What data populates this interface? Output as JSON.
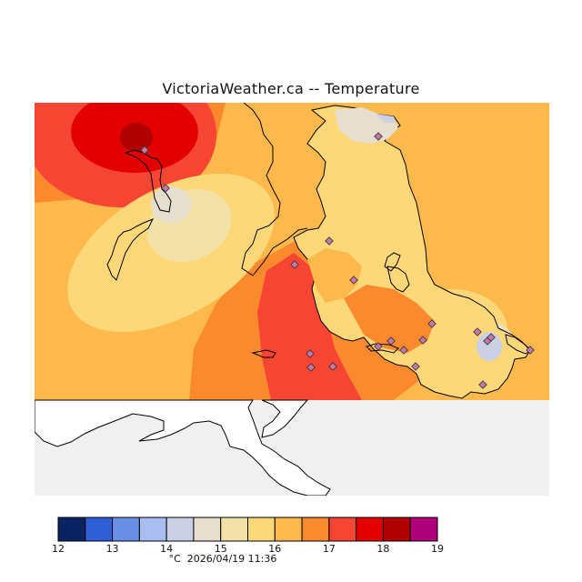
{
  "header": {
    "title": "VictoriaWeather.ca -- Temperature"
  },
  "legend": {
    "unit": "°C",
    "timestamp": "2026/04/19 11:36",
    "ticks": [
      "12",
      "13",
      "14",
      "15",
      "16",
      "17",
      "18",
      "19"
    ],
    "bins": [
      {
        "range": "12-12.5",
        "color": "#0b2363"
      },
      {
        "range": "12.5-13",
        "color": "#2f5fd6"
      },
      {
        "range": "13-13.5",
        "color": "#6a8fe6"
      },
      {
        "range": "13.5-14",
        "color": "#a9bdf0"
      },
      {
        "range": "14-14.5",
        "color": "#cbd0e4"
      },
      {
        "range": "14.5-15",
        "color": "#e6dfd0"
      },
      {
        "range": "15-15.5",
        "color": "#f2e2a8"
      },
      {
        "range": "15.5-16",
        "color": "#fdd878"
      },
      {
        "range": "16-16.5",
        "color": "#fdb94c"
      },
      {
        "range": "16.5-17",
        "color": "#fb8a2e"
      },
      {
        "range": "17-17.5",
        "color": "#f64532"
      },
      {
        "range": "17.5-18",
        "color": "#e30000"
      },
      {
        "range": "18-18.5",
        "color": "#b00000"
      },
      {
        "range": "18.5-19",
        "color": "#b0007a"
      }
    ]
  },
  "map": {
    "land_color": "#f0f0f0",
    "coast_color": "#000000",
    "station_color": "#c278a8",
    "station_count": 20
  }
}
